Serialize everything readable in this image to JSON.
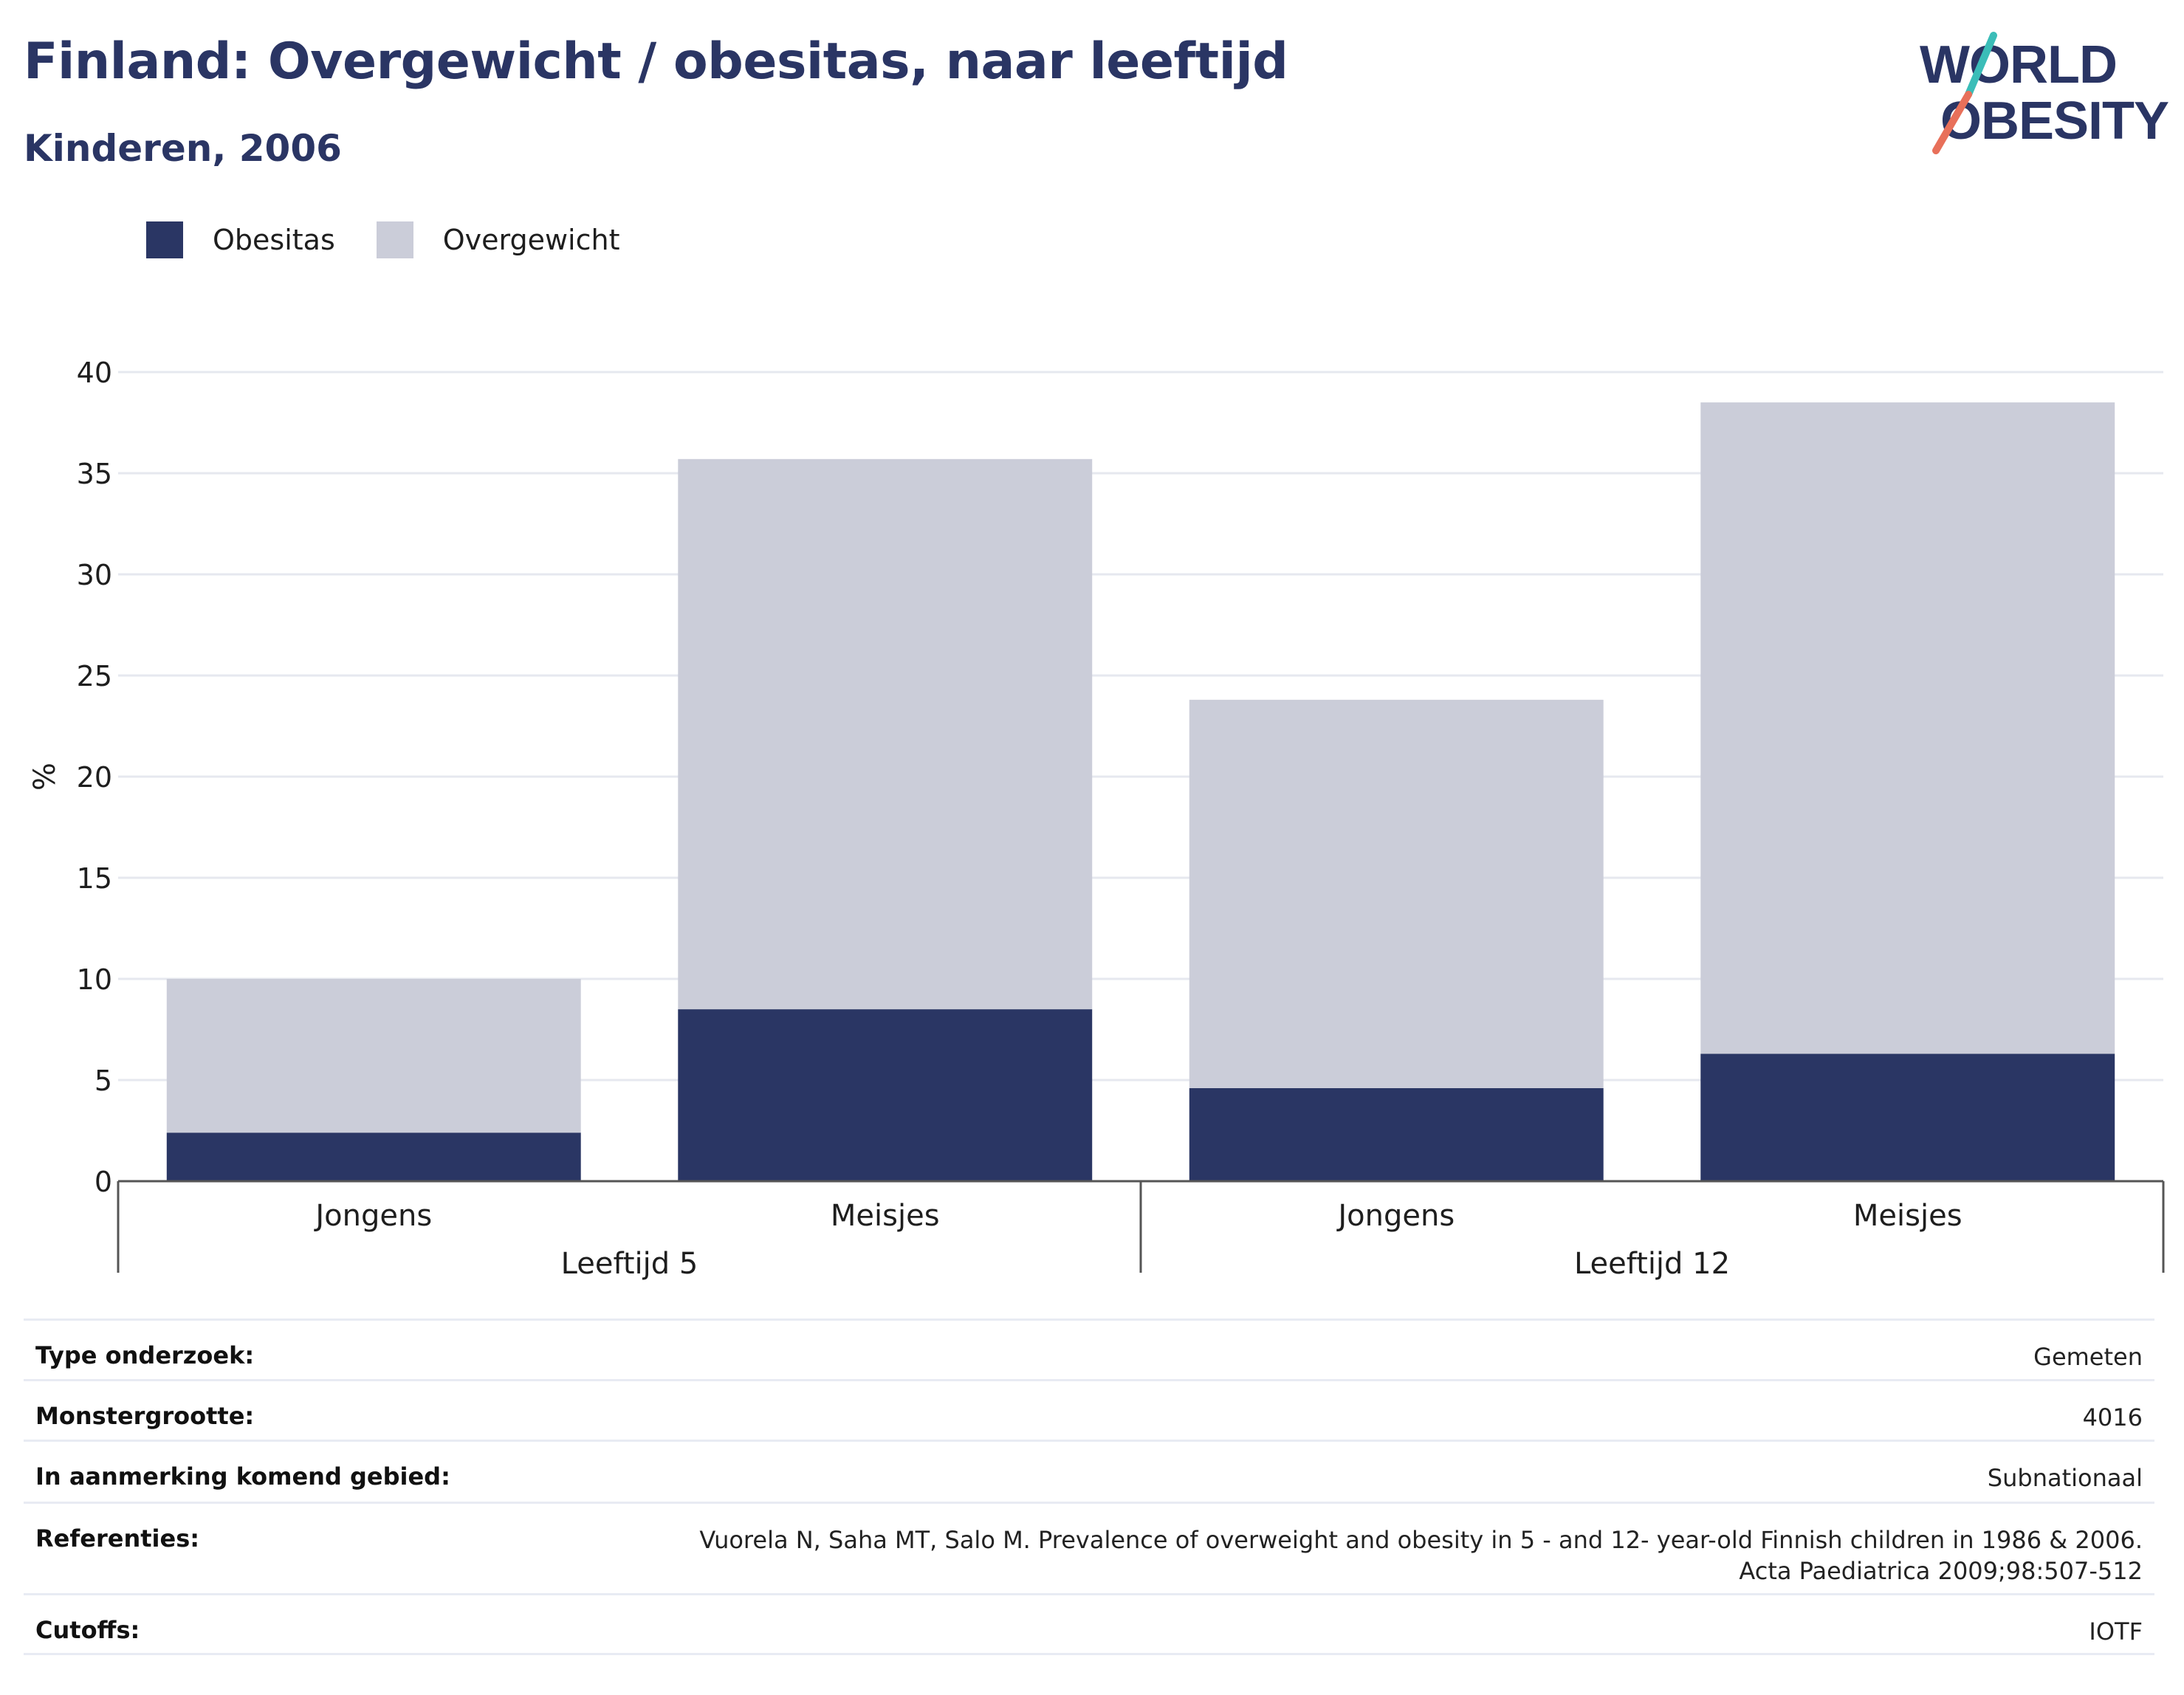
{
  "title": "Finland: Overgewicht / obesitas, naar leeftijd",
  "subtitle": "Kinderen, 2006",
  "logo": {
    "line1": "WORLD",
    "line2": "OBESITY"
  },
  "legend": [
    {
      "label": "Obesitas",
      "color": "#2a3664"
    },
    {
      "label": "Overgewicht",
      "color": "#cbcdd9"
    }
  ],
  "chart_data": {
    "type": "bar",
    "stacked": true,
    "ylabel": "%",
    "ylim": [
      0,
      40
    ],
    "yticks": [
      0,
      5,
      10,
      15,
      20,
      25,
      30,
      35,
      40
    ],
    "grid": true,
    "legend_position": "top-left",
    "groups": [
      {
        "label": "Leeftijd 5",
        "categories": [
          "Jongens",
          "Meisjes"
        ]
      },
      {
        "label": "Leeftijd 12",
        "categories": [
          "Jongens",
          "Meisjes"
        ]
      }
    ],
    "categories": [
      "Jongens",
      "Meisjes",
      "Jongens",
      "Meisjes"
    ],
    "series": [
      {
        "name": "Obesitas",
        "color": "#2a3664",
        "values": [
          2.4,
          8.5,
          4.6,
          6.3
        ]
      },
      {
        "name": "Overgewicht",
        "color": "#cbcdd9",
        "values": [
          7.6,
          27.2,
          19.2,
          32.2
        ]
      }
    ]
  },
  "info": [
    {
      "label": "Type onderzoek:",
      "value": "Gemeten"
    },
    {
      "label": "Monstergrootte:",
      "value": "4016"
    },
    {
      "label": "In aanmerking komend gebied:",
      "value": "Subnationaal"
    },
    {
      "label": "Referenties:",
      "value": "Vuorela N, Saha MT, Salo M. Prevalence of overweight and obesity in 5 - and 12- year-old Finnish children in 1986 & 2006. Acta Paediatrica 2009;98:507-512"
    },
    {
      "label": "Cutoffs:",
      "value": "IOTF"
    }
  ]
}
